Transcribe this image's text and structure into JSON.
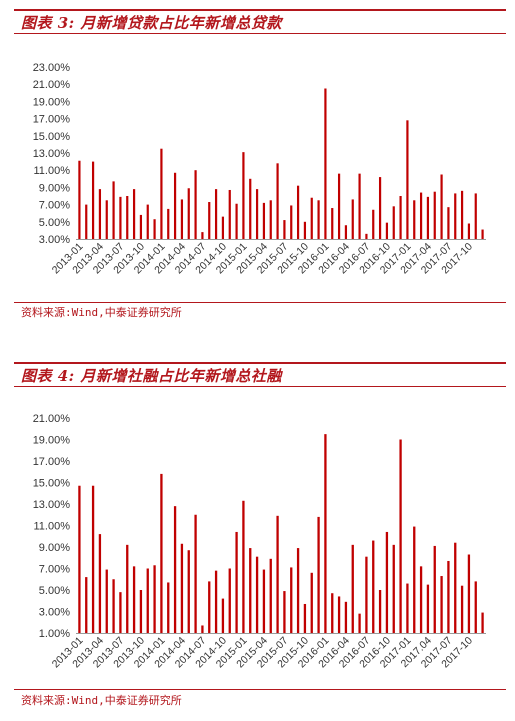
{
  "charts": [
    {
      "figure_title": "图表 3:  月新增贷款占比年新增总贷款",
      "source": "资料来源:Wind,中泰证券研究所",
      "chart_data": {
        "type": "bar",
        "color": "#c00000",
        "grid": false,
        "legend": "none",
        "ylim": [
          3.0,
          23.0
        ],
        "yticks": [
          "3.00%",
          "5.00%",
          "7.00%",
          "9.00%",
          "11.00%",
          "13.00%",
          "15.00%",
          "17.00%",
          "19.00%",
          "21.00%",
          "23.00%"
        ],
        "xtick_labels": [
          "2013-01",
          "2013-04",
          "2013-07",
          "2013-10",
          "2014-01",
          "2014-04",
          "2014-07",
          "2014-10",
          "2015-01",
          "2015-04",
          "2015-07",
          "2015-10",
          "2016-01",
          "2016-04",
          "2016-07",
          "2016-10",
          "2017-01",
          "2017-04",
          "2017-07",
          "2017-10"
        ],
        "categories": [
          "2013-01",
          "2013-02",
          "2013-03",
          "2013-04",
          "2013-05",
          "2013-06",
          "2013-07",
          "2013-08",
          "2013-09",
          "2013-10",
          "2013-11",
          "2013-12",
          "2014-01",
          "2014-02",
          "2014-03",
          "2014-04",
          "2014-05",
          "2014-06",
          "2014-07",
          "2014-08",
          "2014-09",
          "2014-10",
          "2014-11",
          "2014-12",
          "2015-01",
          "2015-02",
          "2015-03",
          "2015-04",
          "2015-05",
          "2015-06",
          "2015-07",
          "2015-08",
          "2015-09",
          "2015-10",
          "2015-11",
          "2015-12",
          "2016-01",
          "2016-02",
          "2016-03",
          "2016-04",
          "2016-05",
          "2016-06",
          "2016-07",
          "2016-08",
          "2016-09",
          "2016-10",
          "2016-11",
          "2016-12",
          "2017-01",
          "2017-02",
          "2017-03",
          "2017-04",
          "2017-05",
          "2017-06",
          "2017-07",
          "2017-08",
          "2017-09",
          "2017-10",
          "2017-11",
          "2017-12"
        ],
        "values": [
          12.1,
          7.0,
          12.0,
          8.8,
          7.5,
          9.7,
          7.9,
          8.0,
          8.8,
          5.8,
          7.0,
          5.3,
          13.5,
          6.5,
          10.7,
          7.6,
          8.9,
          11.0,
          3.8,
          7.3,
          8.8,
          5.6,
          8.7,
          7.1,
          13.1,
          10.0,
          8.8,
          7.2,
          7.5,
          11.8,
          5.2,
          6.9,
          9.2,
          5.0,
          7.8,
          7.5,
          20.5,
          6.6,
          10.6,
          4.6,
          7.6,
          10.6,
          3.6,
          6.4,
          10.2,
          4.9,
          6.8,
          8.0,
          16.8,
          7.5,
          8.4,
          7.9,
          8.5,
          10.5,
          6.7,
          8.3,
          8.6,
          4.8,
          8.3,
          4.1
        ]
      }
    },
    {
      "figure_title": "图表 4:  月新增社融占比年新增总社融",
      "source": "资料来源:Wind,中泰证券研究所",
      "chart_data": {
        "type": "bar",
        "color": "#c00000",
        "grid": false,
        "legend": "none",
        "ylim": [
          1.0,
          21.0
        ],
        "yticks": [
          "1.00%",
          "3.00%",
          "5.00%",
          "7.00%",
          "9.00%",
          "11.00%",
          "13.00%",
          "15.00%",
          "17.00%",
          "19.00%",
          "21.00%"
        ],
        "xtick_labels": [
          "2013-01",
          "2013-04",
          "2013-07",
          "2013-10",
          "2014-01",
          "2014-04",
          "2014-07",
          "2014-10",
          "2015-01",
          "2015-04",
          "2015-07",
          "2015-10",
          "2016-01",
          "2016-04",
          "2016-07",
          "2016-10",
          "2017-01",
          "2017.04",
          "2017-07",
          "2017-10"
        ],
        "categories": [
          "2013-01",
          "2013-02",
          "2013-03",
          "2013-04",
          "2013-05",
          "2013-06",
          "2013-07",
          "2013-08",
          "2013-09",
          "2013-10",
          "2013-11",
          "2013-12",
          "2014-01",
          "2014-02",
          "2014-03",
          "2014-04",
          "2014-05",
          "2014-06",
          "2014-07",
          "2014-08",
          "2014-09",
          "2014-10",
          "2014-11",
          "2014-12",
          "2015-01",
          "2015-02",
          "2015-03",
          "2015-04",
          "2015-05",
          "2015-06",
          "2015-07",
          "2015-08",
          "2015-09",
          "2015-10",
          "2015-11",
          "2015-12",
          "2016-01",
          "2016-02",
          "2016-03",
          "2016-04",
          "2016-05",
          "2016-06",
          "2016-07",
          "2016-08",
          "2016-09",
          "2016-10",
          "2016-11",
          "2016-12",
          "2017-01",
          "2017-02",
          "2017-03",
          "2017-04",
          "2017-05",
          "2017-06",
          "2017-07",
          "2017-08",
          "2017-09",
          "2017-10",
          "2017-11",
          "2017-12"
        ],
        "values": [
          14.7,
          6.2,
          14.7,
          10.2,
          6.9,
          6.0,
          4.8,
          9.2,
          7.2,
          5.0,
          7.0,
          7.3,
          15.8,
          5.7,
          12.8,
          9.3,
          8.7,
          12.0,
          1.7,
          5.8,
          6.8,
          4.2,
          7.0,
          10.4,
          13.3,
          8.9,
          8.1,
          6.9,
          7.9,
          11.9,
          4.9,
          7.1,
          8.9,
          3.7,
          6.6,
          11.8,
          19.5,
          4.7,
          4.4,
          3.9,
          9.2,
          2.8,
          8.1,
          9.6,
          5.0,
          10.4,
          9.2,
          19.0,
          5.6,
          10.9,
          7.2,
          5.5,
          9.1,
          6.3,
          7.7,
          9.4,
          5.4,
          8.3,
          5.8,
          2.9
        ]
      }
    }
  ]
}
